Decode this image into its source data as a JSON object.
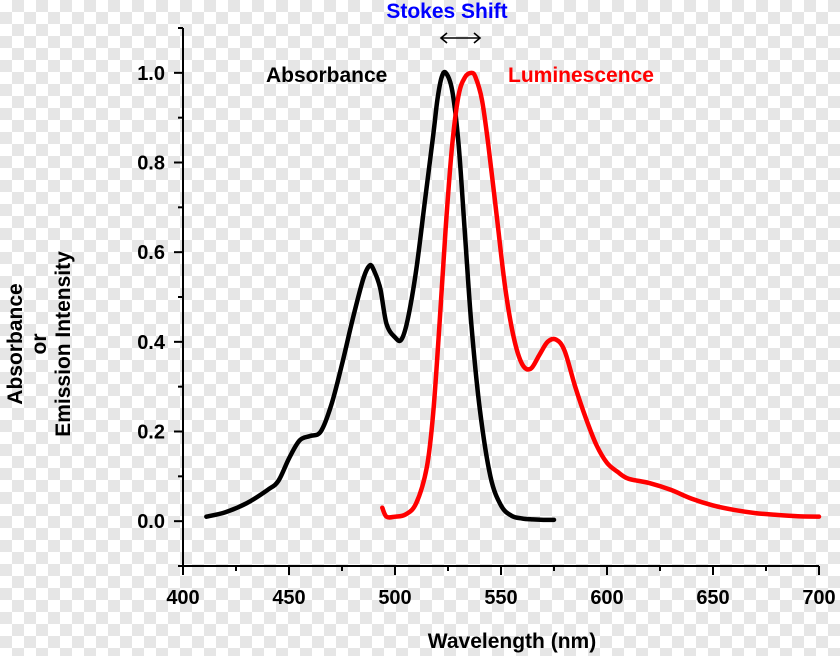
{
  "chart_data": {
    "type": "line",
    "title": "",
    "xlabel": "Wavelength (nm)",
    "ylabel_lines": [
      "Absorbance",
      "or",
      "Emission Intensity"
    ],
    "xlim": [
      400,
      700
    ],
    "ylim": [
      -0.1,
      1.1
    ],
    "x_ticks": [
      400,
      450,
      500,
      550,
      600,
      650,
      700
    ],
    "x_tick_labels": [
      "400",
      "450",
      "500",
      "550",
      "600",
      "650",
      "700"
    ],
    "y_ticks": [
      0.0,
      0.2,
      0.4,
      0.6,
      0.8,
      1.0
    ],
    "y_tick_labels": [
      "0.0",
      "0.2",
      "0.4",
      "0.6",
      "0.8",
      "1.0"
    ],
    "grid": false,
    "series": [
      {
        "name": "Absorbance",
        "color": "#000000",
        "x": [
          411,
          420,
          430,
          440,
          445,
          450,
          455,
          460,
          465,
          470,
          475,
          480,
          485,
          488,
          490,
          493,
          496,
          500,
          503,
          506,
          510,
          514,
          518,
          520,
          522,
          524,
          527,
          530,
          533,
          536,
          540,
          545,
          550,
          555,
          560,
          565,
          570,
          575
        ],
        "y": [
          0.01,
          0.02,
          0.04,
          0.07,
          0.09,
          0.14,
          0.18,
          0.19,
          0.2,
          0.26,
          0.35,
          0.45,
          0.54,
          0.57,
          0.56,
          0.52,
          0.44,
          0.41,
          0.405,
          0.45,
          0.56,
          0.71,
          0.86,
          0.94,
          0.99,
          1.0,
          0.96,
          0.84,
          0.64,
          0.44,
          0.25,
          0.1,
          0.035,
          0.012,
          0.006,
          0.004,
          0.003,
          0.003
        ]
      },
      {
        "name": "Luminescence",
        "color": "#ff0000",
        "x": [
          494,
          496,
          500,
          505,
          510,
          515,
          518,
          521,
          524,
          527,
          530,
          533,
          536,
          538,
          541,
          544,
          548,
          552,
          556,
          560,
          564,
          568,
          572,
          576,
          580,
          585,
          590,
          595,
          600,
          605,
          610,
          620,
          630,
          640,
          650,
          660,
          670,
          680,
          690,
          700
        ],
        "y": [
          0.03,
          0.01,
          0.01,
          0.015,
          0.04,
          0.12,
          0.24,
          0.44,
          0.66,
          0.84,
          0.95,
          0.99,
          1.0,
          0.99,
          0.94,
          0.84,
          0.68,
          0.52,
          0.41,
          0.35,
          0.34,
          0.37,
          0.4,
          0.405,
          0.38,
          0.3,
          0.23,
          0.17,
          0.13,
          0.11,
          0.095,
          0.085,
          0.07,
          0.05,
          0.035,
          0.025,
          0.018,
          0.014,
          0.011,
          0.01
        ]
      }
    ],
    "annotations": [
      {
        "text": "Absorbance",
        "color": "#000000"
      },
      {
        "text": "Luminescence",
        "color": "#ff0000"
      },
      {
        "text": "Stokes Shift",
        "color": "#0000ff"
      }
    ]
  }
}
